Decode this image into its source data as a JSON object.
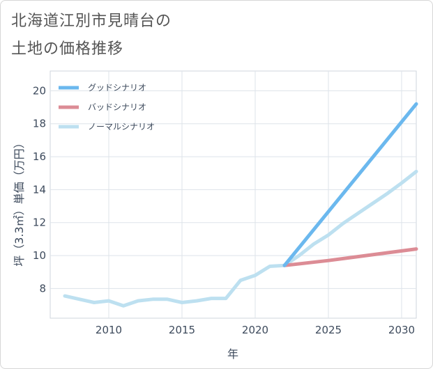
{
  "title_line1": "北海道江別市見晴台の",
  "title_line2": "土地の価格推移",
  "chart_data": {
    "type": "line",
    "xlabel": "年",
    "ylabel": "坪（3.3㎡）単価（万円）",
    "xlim": [
      2006,
      2031
    ],
    "ylim": [
      6.2,
      21.2
    ],
    "xticks": [
      2010,
      2015,
      2020,
      2025,
      2030
    ],
    "yticks": [
      8,
      10,
      12,
      14,
      16,
      18,
      20
    ],
    "legend_position": "top-left",
    "series": [
      {
        "name": "グッドシナリオ",
        "color": "#6bb8ee",
        "x": [
          2022,
          2031
        ],
        "values": [
          9.4,
          19.2
        ]
      },
      {
        "name": "バッドシナリオ",
        "color": "#dc8c95",
        "x": [
          2022,
          2025,
          2028,
          2031
        ],
        "values": [
          9.4,
          9.7,
          10.05,
          10.4
        ]
      },
      {
        "name": "ノーマルシナリオ",
        "color": "#bde0f0",
        "x": [
          2007,
          2008,
          2009,
          2010,
          2011,
          2012,
          2013,
          2014,
          2015,
          2016,
          2017,
          2018,
          2019,
          2020,
          2021,
          2022,
          2023,
          2024,
          2025,
          2026,
          2027,
          2028,
          2029,
          2030,
          2031
        ],
        "values": [
          7.55,
          7.35,
          7.15,
          7.25,
          6.95,
          7.25,
          7.35,
          7.35,
          7.15,
          7.25,
          7.4,
          7.4,
          8.5,
          8.8,
          9.35,
          9.4,
          10.0,
          10.7,
          11.25,
          11.95,
          12.55,
          13.15,
          13.75,
          14.4,
          15.1
        ]
      }
    ]
  }
}
